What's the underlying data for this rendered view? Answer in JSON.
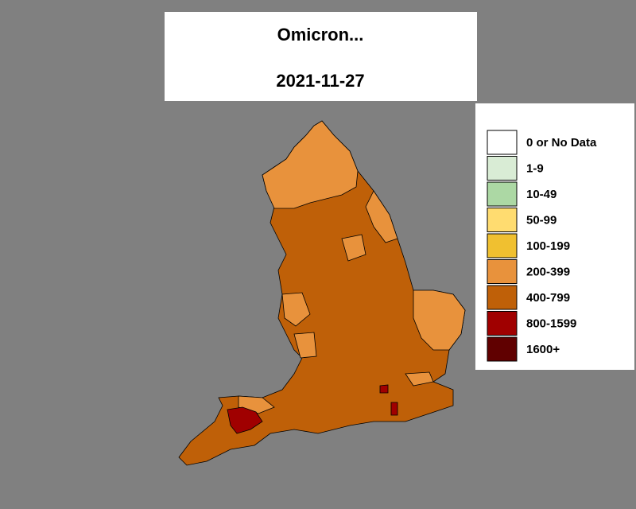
{
  "title": "Omicron...",
  "date": "2021-11-27",
  "legend": [
    {
      "label": "0 or No Data",
      "color": "#ffffff"
    },
    {
      "label": "1-9",
      "color": "#d9ecd5"
    },
    {
      "label": "10-49",
      "color": "#acd8a4"
    },
    {
      "label": "50-99",
      "color": "#ffdc70"
    },
    {
      "label": "100-199",
      "color": "#f0c030"
    },
    {
      "label": "200-399",
      "color": "#e8923c"
    },
    {
      "label": "400-799",
      "color": "#bf6008"
    },
    {
      "label": "800-1599",
      "color": "#a00000"
    },
    {
      "label": "1600+",
      "color": "#600000"
    }
  ]
}
